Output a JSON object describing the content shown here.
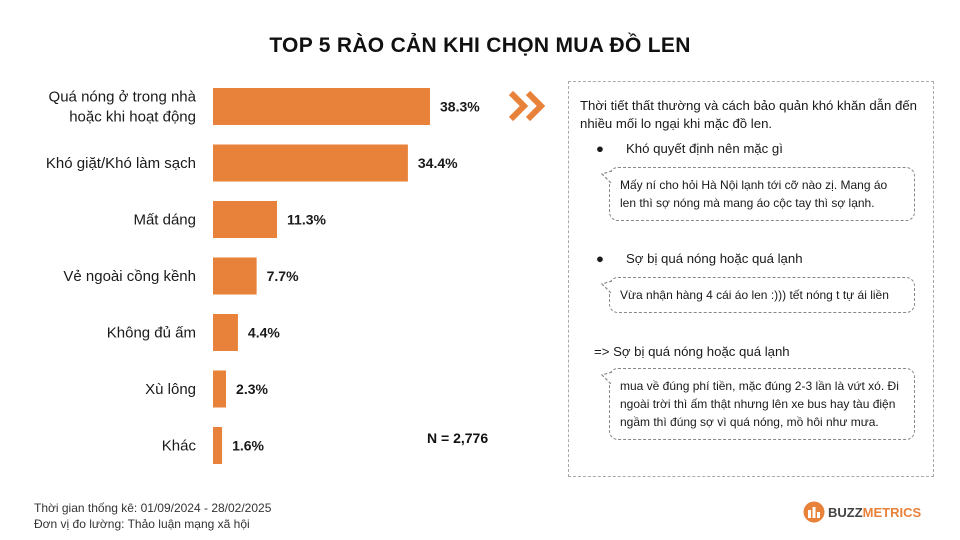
{
  "title": "TOP 5 RÀO CẢN KHI CHỌN MUA ĐỒ LEN",
  "chart_data": {
    "type": "bar",
    "orientation": "horizontal",
    "categories": [
      [
        "Quá nóng ở trong nhà",
        "hoặc khi hoạt động"
      ],
      [
        "Khó giặt/Khó làm sạch"
      ],
      [
        "Mất dáng"
      ],
      [
        "Vẻ ngoài cồng kềnh"
      ],
      [
        "Không đủ ấm"
      ],
      [
        "Xù lông"
      ],
      [
        "Khác"
      ]
    ],
    "values": [
      38.3,
      34.4,
      11.3,
      7.7,
      4.4,
      2.3,
      1.6
    ],
    "value_labels": [
      "38.3%",
      "34.4%",
      "11.3%",
      "7.7%",
      "4.4%",
      "2.3%",
      "1.6%"
    ],
    "bar_color": "#e8823a",
    "grid": false,
    "legend": "none"
  },
  "n_label": "N = 2,776",
  "panel": {
    "intro": "Thời tiết thất thường và cách bảo quản khó khăn dẫn đến nhiều mối lo ngại khi mặc đồ len.",
    "bullet_symbol": "●",
    "section1": "Khó quyết định nên mặc gì",
    "quote1": "Mấy ní cho hỏi Hà Nội lạnh tới cỡ nào zị. Mang áo len thì sợ nóng mà mang áo cộc tay thì sợ lạnh.",
    "section2": "Sợ bị quá nóng hoặc quá lạnh",
    "quote2": "Vừa nhận hàng 4 cái áo len :))) tết nóng t tự ái liền",
    "section3": "=> Sợ bị quá nóng hoặc quá lạnh",
    "quote3": "mua về đúng phí tiền, mặc đúng 2-3 lần là vứt xó. Đi ngoài trời thì ấm thật nhưng lên xe bus hay tàu điện ngầm thì đúng sợ vì quá nóng, mồ hôi như mưa."
  },
  "footer": {
    "line1": "Thời gian thống kê: 01/09/2024 - 28/02/2025",
    "line2": "Đơn vị đo lường: Thảo luận mạng xã hội"
  },
  "logo": {
    "part1": "BUZZ",
    "part2": "METRICS"
  },
  "icons": [
    "chevron-double-right-icon",
    "speech-tail-icon",
    "buzzmetrics-logo-icon"
  ],
  "colors": {
    "accent": "#e8823a"
  }
}
